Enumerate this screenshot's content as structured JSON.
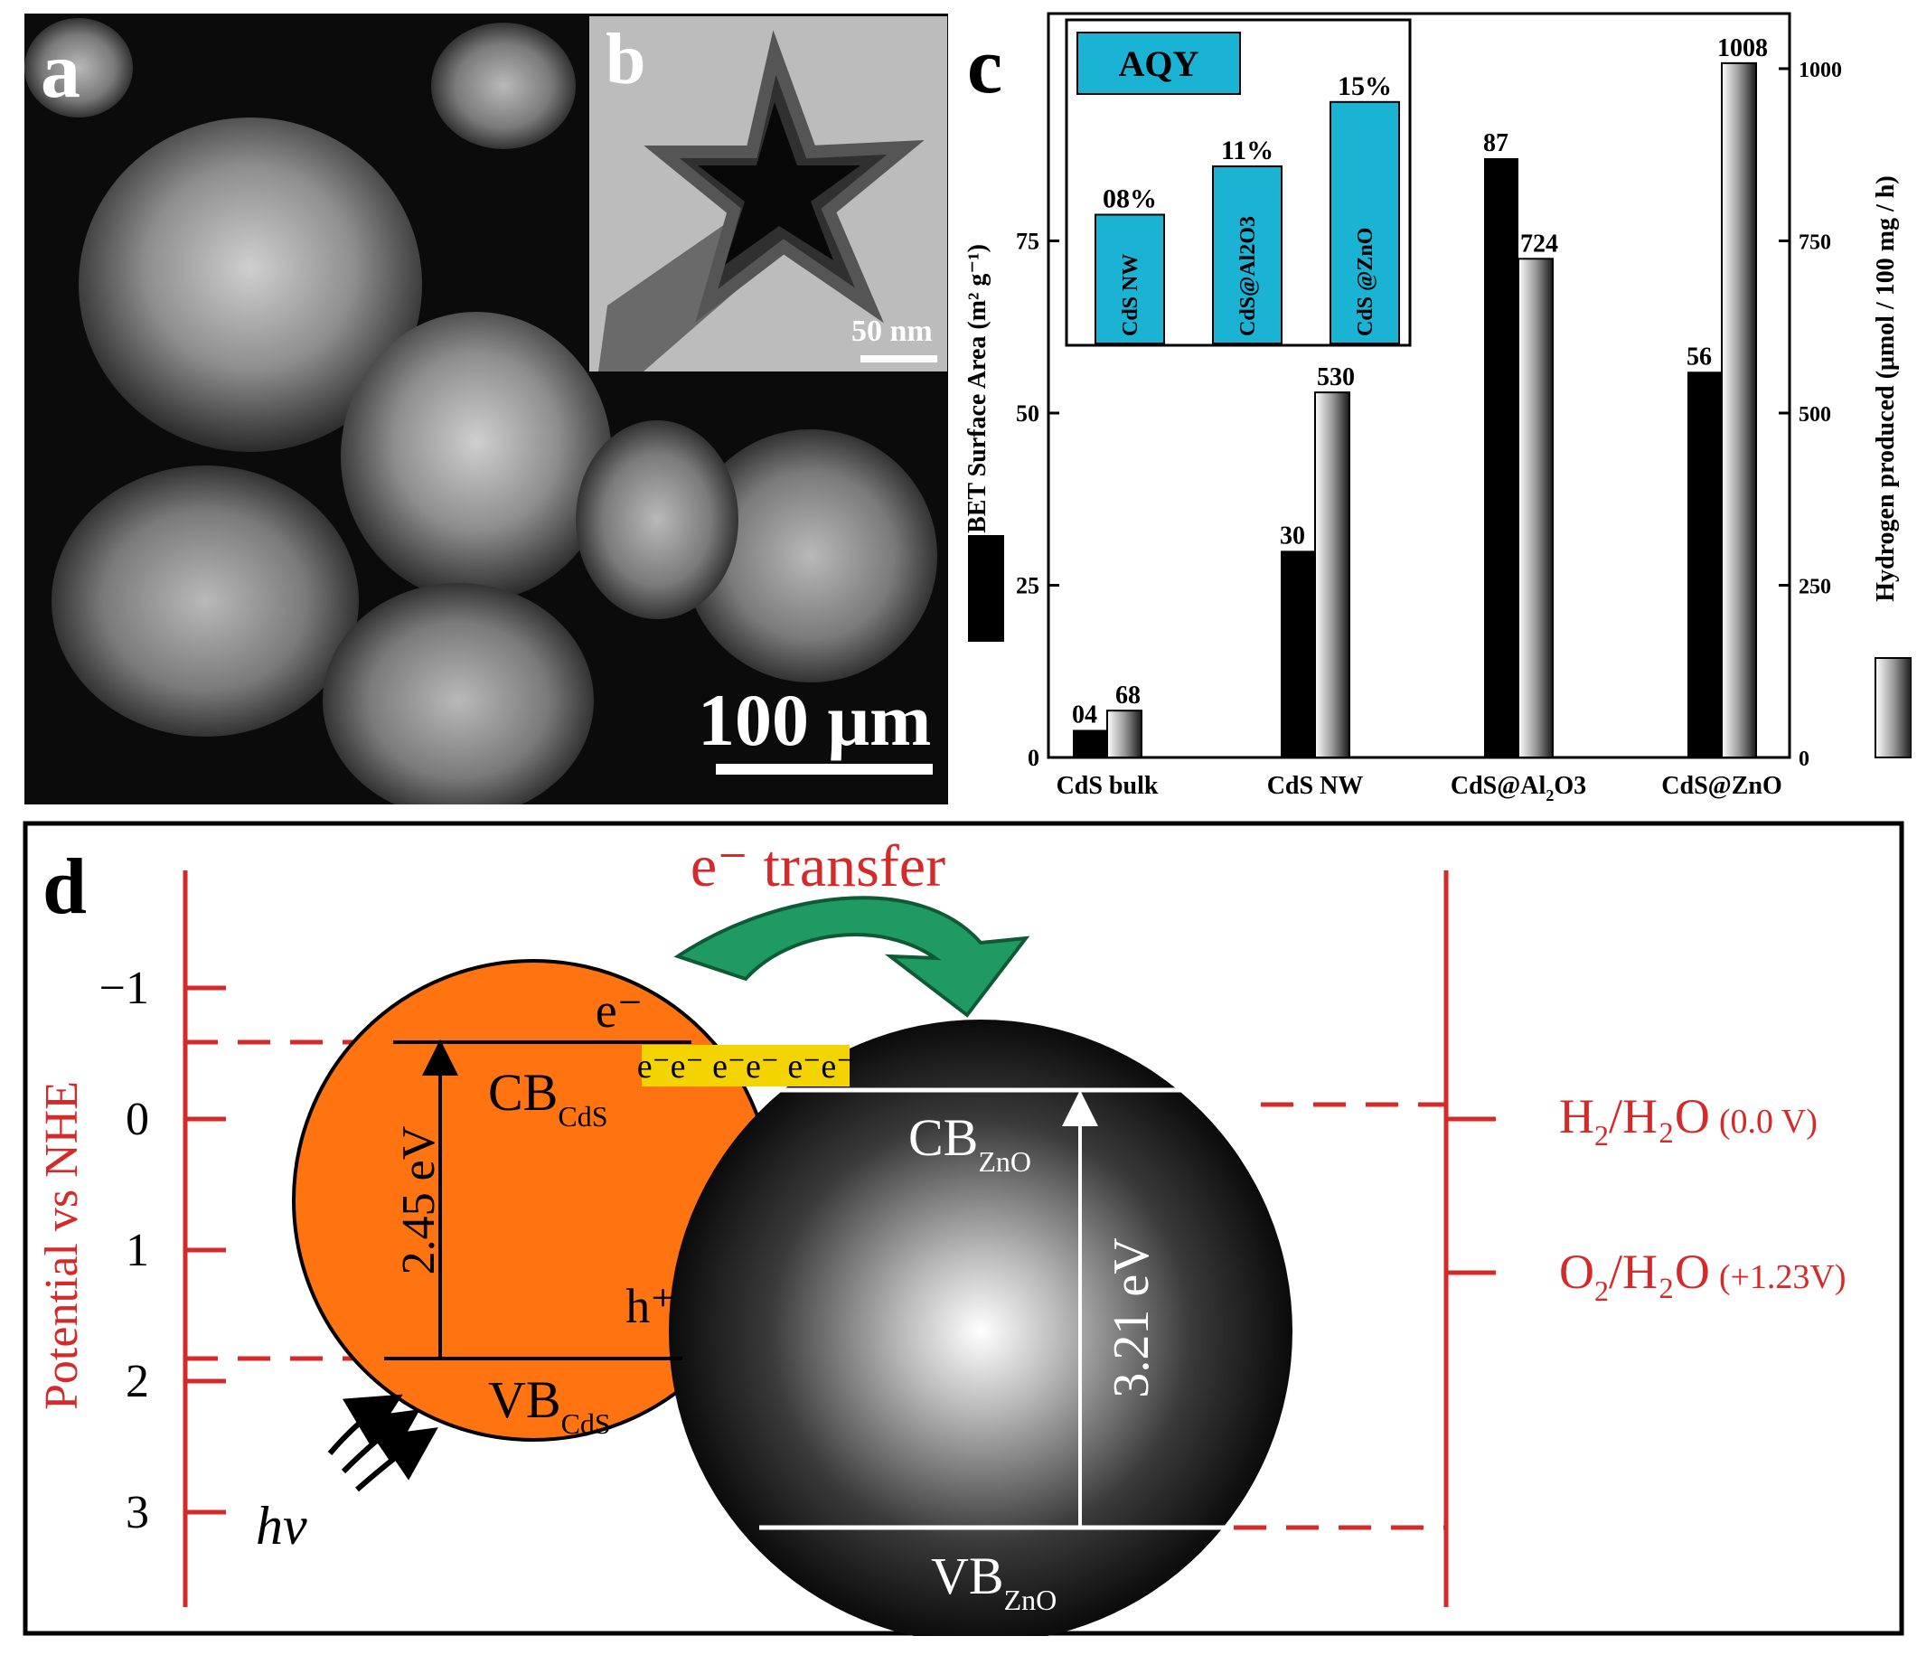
{
  "panels": {
    "a": {
      "label": "a",
      "scale_bar": "100 μm"
    },
    "b": {
      "label": "b",
      "scale_bar": "50 nm"
    },
    "c": {
      "label": "c"
    },
    "d": {
      "label": "d"
    }
  },
  "chart_data": {
    "type": "bar",
    "categories": [
      "CdS bulk",
      "CdS NW",
      "CdS@Al2O3",
      "CdS@ZnO"
    ],
    "category_display": [
      {
        "main": "CdS bulk",
        "sub": "",
        "tail": ""
      },
      {
        "main": "CdS NW",
        "sub": "",
        "tail": ""
      },
      {
        "main": "CdS@Al",
        "sub": "2",
        "tail": "O3"
      },
      {
        "main": "CdS@ZnO",
        "sub": "",
        "tail": ""
      }
    ],
    "series": [
      {
        "axis": "left",
        "values": [
          4,
          30,
          87,
          56
        ],
        "labels": [
          "04",
          "30",
          "87",
          "56"
        ],
        "color": "#000000"
      },
      {
        "axis": "right",
        "values": [
          68,
          530,
          724,
          1008
        ],
        "labels": [
          "68",
          "530",
          "724",
          "1008"
        ],
        "color": "gradient-gray"
      }
    ],
    "ylabel_left": "BET Surface Area (m² g⁻¹)",
    "ylabel_right": "Hydrogen produced (μmol / 100 mg / h)",
    "ylim_left": [
      0,
      108
    ],
    "ylim_right": [
      0,
      1080
    ],
    "yticks_left": [
      0,
      25,
      50,
      75
    ],
    "yticks_right": [
      0,
      250,
      500,
      750,
      1000
    ],
    "inset": {
      "title": "AQY",
      "type": "bar",
      "bars": [
        {
          "category": "CdS NW",
          "label": "08%",
          "value": 8
        },
        {
          "category": "CdS@Al2O3",
          "label": "11%",
          "value": 11
        },
        {
          "category": "CdS @ZnO",
          "label": "15%",
          "value": 15
        }
      ],
      "color": "#1ab3d4"
    }
  },
  "diagram": {
    "axis_label": "Potential vs NHE",
    "ticks": [
      "−1",
      "0",
      "1",
      "2",
      "3"
    ],
    "title": "e⁻ transfer",
    "electron": "e⁻",
    "hole": "h⁺",
    "electron_strip": "e⁻e⁻ e⁻e⁻ e⁻e⁻",
    "cds_cb": {
      "main": "CB",
      "sub": "CdS"
    },
    "cds_vb": {
      "main": "VB",
      "sub": "CdS"
    },
    "cds_gap": "2.45 eV",
    "zno_cb": {
      "main": "CB",
      "sub": "ZnO"
    },
    "zno_vb": {
      "main": "VB",
      "sub": "ZnO"
    },
    "zno_gap": "3.21 eV",
    "light": "hv",
    "redox1": {
      "main": "H",
      "sub": "2",
      "rest": "/H₂O",
      "value": "(0.0 V)"
    },
    "redox2": {
      "main": "O",
      "sub": "2",
      "rest": "/H₂O",
      "value": "(+1.23V)"
    },
    "colors": {
      "red": "#d42a2a",
      "cds": "#ff7410",
      "arrow": "#1f9a62",
      "strip": "#f3d400"
    }
  }
}
